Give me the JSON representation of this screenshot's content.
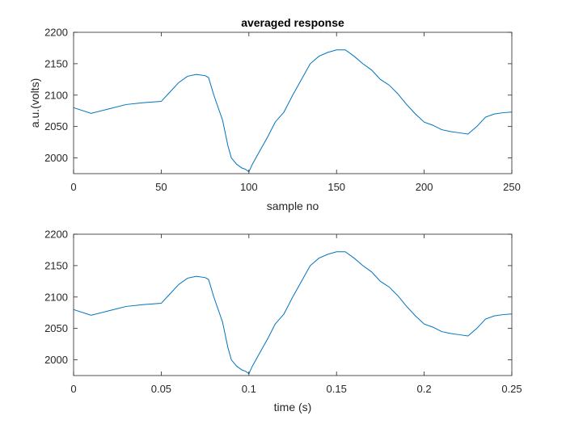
{
  "chart_data": [
    {
      "type": "line",
      "title": "averaged response",
      "xlabel": "sample no",
      "ylabel": "a.u.(volts)",
      "xlim": [
        0,
        250
      ],
      "ylim": [
        1975,
        2200
      ],
      "xticks": [
        0,
        50,
        100,
        150,
        200,
        250
      ],
      "xtick_labels": [
        "0",
        "50",
        "100",
        "150",
        "200",
        "250"
      ],
      "yticks": [
        2000,
        2050,
        2100,
        2150,
        2200
      ],
      "ytick_labels": [
        "2000",
        "2050",
        "2100",
        "2150",
        "2200"
      ],
      "grid": false,
      "color": "#0072BD",
      "x": [
        0,
        10,
        20,
        30,
        40,
        50,
        55,
        60,
        65,
        70,
        75,
        77,
        80,
        85,
        88,
        90,
        93,
        96,
        98,
        100,
        102,
        105,
        108,
        111,
        115,
        120,
        125,
        130,
        135,
        140,
        145,
        150,
        155,
        160,
        165,
        170,
        175,
        180,
        185,
        190,
        195,
        200,
        205,
        210,
        215,
        220,
        225,
        230,
        235,
        240,
        245,
        250
      ],
      "values": [
        2080,
        2071,
        2078,
        2085,
        2088,
        2090,
        2105,
        2120,
        2130,
        2133,
        2131,
        2128,
        2100,
        2060,
        2020,
        2000,
        1990,
        1984,
        1982,
        1978,
        1990,
        2005,
        2020,
        2035,
        2057,
        2073,
        2100,
        2125,
        2150,
        2162,
        2168,
        2172,
        2172,
        2162,
        2150,
        2140,
        2125,
        2116,
        2102,
        2085,
        2070,
        2057,
        2052,
        2045,
        2042,
        2040,
        2038,
        2050,
        2065,
        2070,
        2072,
        2073
      ]
    },
    {
      "type": "line",
      "title": "",
      "xlabel": "time (s)",
      "ylabel": "",
      "xlim": [
        0,
        0.25
      ],
      "ylim": [
        1975,
        2200
      ],
      "xticks": [
        0,
        0.05,
        0.1,
        0.15,
        0.2,
        0.25
      ],
      "xtick_labels": [
        "0",
        "0.05",
        "0.1",
        "0.15",
        "0.2",
        "0.25"
      ],
      "yticks": [
        2000,
        2050,
        2100,
        2150,
        2200
      ],
      "ytick_labels": [
        "2000",
        "2050",
        "2100",
        "2150",
        "2200"
      ],
      "grid": false,
      "color": "#0072BD",
      "x": [
        0,
        0.01,
        0.02,
        0.03,
        0.04,
        0.05,
        0.055,
        0.06,
        0.065,
        0.07,
        0.075,
        0.077,
        0.08,
        0.085,
        0.088,
        0.09,
        0.093,
        0.096,
        0.098,
        0.1,
        0.102,
        0.105,
        0.108,
        0.111,
        0.115,
        0.12,
        0.125,
        0.13,
        0.135,
        0.14,
        0.145,
        0.15,
        0.155,
        0.16,
        0.165,
        0.17,
        0.175,
        0.18,
        0.185,
        0.19,
        0.195,
        0.2,
        0.205,
        0.21,
        0.215,
        0.22,
        0.225,
        0.23,
        0.235,
        0.24,
        0.245,
        0.25
      ],
      "values": [
        2080,
        2071,
        2078,
        2085,
        2088,
        2090,
        2105,
        2120,
        2130,
        2133,
        2131,
        2128,
        2100,
        2060,
        2020,
        2000,
        1990,
        1984,
        1982,
        1978,
        1990,
        2005,
        2020,
        2035,
        2057,
        2073,
        2100,
        2125,
        2150,
        2162,
        2168,
        2172,
        2172,
        2162,
        2150,
        2140,
        2125,
        2116,
        2102,
        2085,
        2070,
        2057,
        2052,
        2045,
        2042,
        2040,
        2038,
        2050,
        2065,
        2070,
        2072,
        2073
      ]
    }
  ]
}
